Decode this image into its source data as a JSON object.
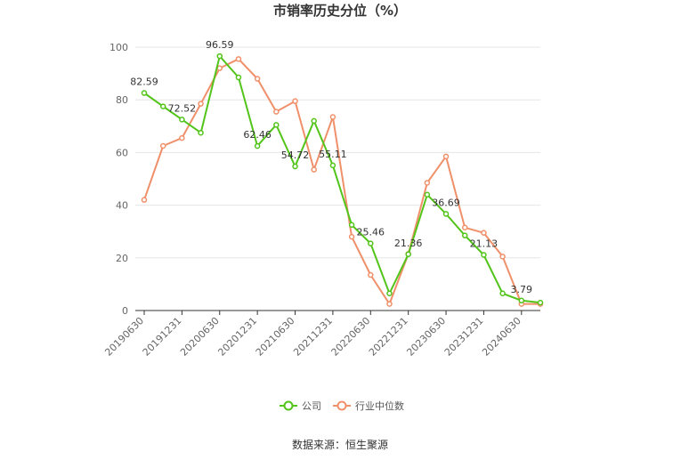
{
  "chart_data": {
    "type": "line",
    "title": "市销率历史分位（%）",
    "x": [
      "20190630",
      "20190930",
      "20191231",
      "20200331",
      "20200630",
      "20200930",
      "20201231",
      "20210331",
      "20210630",
      "20210930",
      "20211231",
      "20220331",
      "20220630",
      "20220930",
      "20221231",
      "20230331",
      "20230630",
      "20230930",
      "20231231",
      "20240331",
      "20240630",
      "20240930"
    ],
    "x_tick_labels": [
      "20190630",
      "20191231",
      "20200630",
      "20201231",
      "20210630",
      "20211231",
      "20220630",
      "20221231",
      "20230630",
      "20231231",
      "20240630"
    ],
    "y_ticks": [
      "0",
      "20",
      "40",
      "60",
      "80",
      "100"
    ],
    "ylim": [
      0,
      100
    ],
    "grid": true,
    "legend_position": "bottom",
    "series": [
      {
        "name": "公司",
        "color": "#52c41a",
        "values": [
          82.59,
          77.5,
          72.52,
          67.5,
          96.59,
          88.5,
          62.46,
          70.5,
          54.72,
          72.0,
          55.11,
          32.5,
          25.46,
          6.5,
          21.36,
          44.0,
          36.69,
          28.5,
          21.13,
          6.5,
          3.79,
          3.0
        ],
        "labels": [
          "82.59",
          "",
          "72.52",
          "",
          "96.59",
          "",
          "62.46",
          "",
          "54.72",
          "",
          "55.11",
          "",
          "25.46",
          "",
          "21.36",
          "",
          "36.69",
          "",
          "21.13",
          "",
          "3.79",
          ""
        ]
      },
      {
        "name": "行业中位数",
        "color": "#f0906a",
        "values": [
          42.0,
          62.5,
          65.5,
          78.5,
          92.0,
          95.5,
          88.0,
          75.5,
          79.5,
          53.5,
          73.5,
          28.0,
          13.5,
          2.5,
          21.5,
          48.5,
          58.5,
          31.5,
          29.5,
          20.5,
          2.5,
          2.5
        ]
      }
    ]
  },
  "source": "数据来源：恒生聚源"
}
